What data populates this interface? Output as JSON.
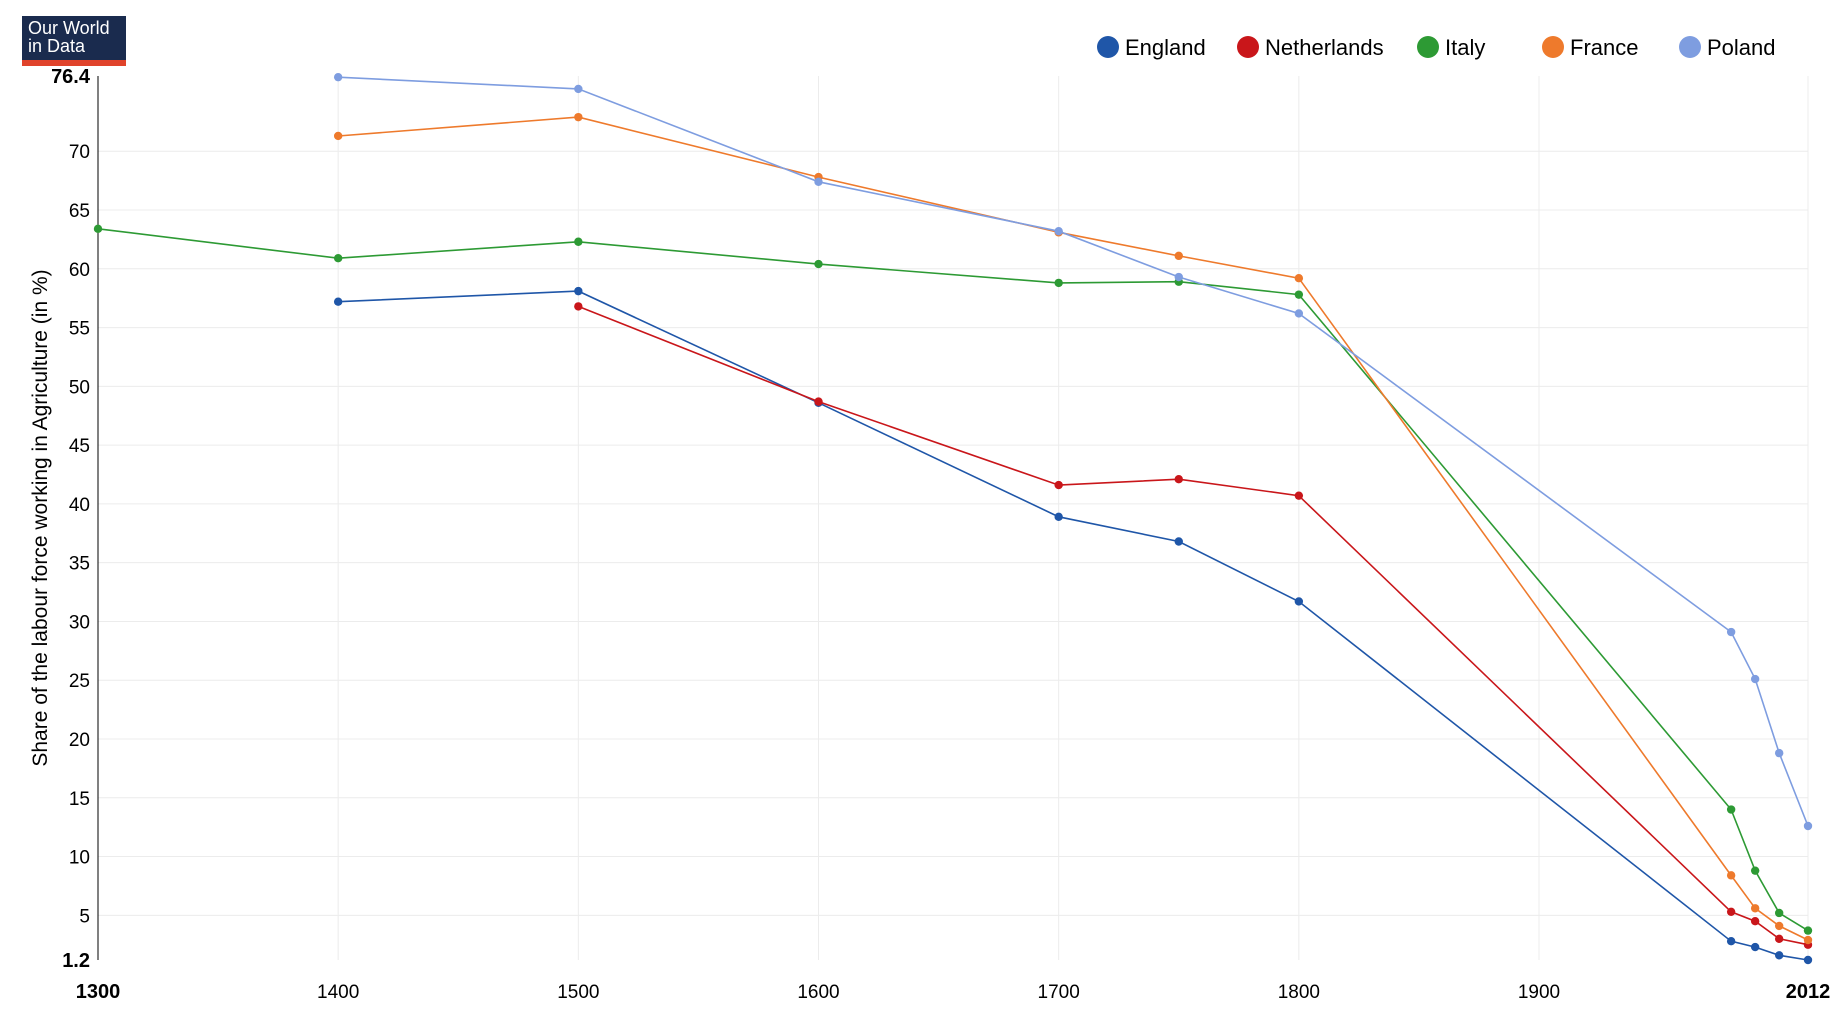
{
  "logo": {
    "line1": "Our World",
    "line2": "in Data"
  },
  "chart_data": {
    "type": "line",
    "title": "",
    "xlabel": "",
    "ylabel": "Share of the labour force working in Agriculture (in %)",
    "xlim": [
      1300,
      2012
    ],
    "ylim": [
      1.2,
      76.4
    ],
    "x_ticks": [
      1300,
      1400,
      1500,
      1600,
      1700,
      1800,
      1900,
      2012
    ],
    "x_ticks_bold": [
      1300,
      2012
    ],
    "y_ticks": [
      1.2,
      5,
      10,
      15,
      20,
      25,
      30,
      35,
      40,
      45,
      50,
      55,
      60,
      65,
      70,
      76.4
    ],
    "y_ticks_bold": [
      1.2,
      76.4
    ],
    "grid": true,
    "legend_position": "top-right",
    "series": [
      {
        "name": "England",
        "color": "#1f56a8",
        "points": [
          [
            1400,
            57.2
          ],
          [
            1500,
            58.1
          ],
          [
            1600,
            48.6
          ],
          [
            1700,
            38.9
          ],
          [
            1750,
            36.8
          ],
          [
            1800,
            31.7
          ],
          [
            1980,
            2.8
          ],
          [
            1990,
            2.3
          ],
          [
            2000,
            1.6
          ],
          [
            2012,
            1.2
          ]
        ]
      },
      {
        "name": "Netherlands",
        "color": "#c9161a",
        "points": [
          [
            1500,
            56.8
          ],
          [
            1600,
            48.7
          ],
          [
            1700,
            41.6
          ],
          [
            1750,
            42.1
          ],
          [
            1800,
            40.7
          ],
          [
            1980,
            5.3
          ],
          [
            1990,
            4.5
          ],
          [
            2000,
            3.0
          ],
          [
            2012,
            2.5
          ]
        ]
      },
      {
        "name": "Italy",
        "color": "#2d9a34",
        "points": [
          [
            1300,
            63.4
          ],
          [
            1400,
            60.9
          ],
          [
            1500,
            62.3
          ],
          [
            1600,
            60.4
          ],
          [
            1700,
            58.8
          ],
          [
            1750,
            58.9
          ],
          [
            1800,
            57.8
          ],
          [
            1980,
            14.0
          ],
          [
            1990,
            8.8
          ],
          [
            2000,
            5.2
          ],
          [
            2012,
            3.7
          ]
        ]
      },
      {
        "name": "France",
        "color": "#ee7a2c",
        "points": [
          [
            1400,
            71.3
          ],
          [
            1500,
            72.9
          ],
          [
            1600,
            67.8
          ],
          [
            1700,
            63.1
          ],
          [
            1750,
            61.1
          ],
          [
            1800,
            59.2
          ],
          [
            1980,
            8.4
          ],
          [
            1990,
            5.6
          ],
          [
            2000,
            4.1
          ],
          [
            2012,
            2.9
          ]
        ]
      },
      {
        "name": "Poland",
        "color": "#7e9de0",
        "points": [
          [
            1400,
            76.3
          ],
          [
            1500,
            75.3
          ],
          [
            1600,
            67.4
          ],
          [
            1700,
            63.2
          ],
          [
            1750,
            59.3
          ],
          [
            1800,
            56.2
          ],
          [
            1980,
            29.1
          ],
          [
            1990,
            25.1
          ],
          [
            2000,
            18.8
          ],
          [
            2012,
            12.6
          ]
        ]
      }
    ]
  }
}
